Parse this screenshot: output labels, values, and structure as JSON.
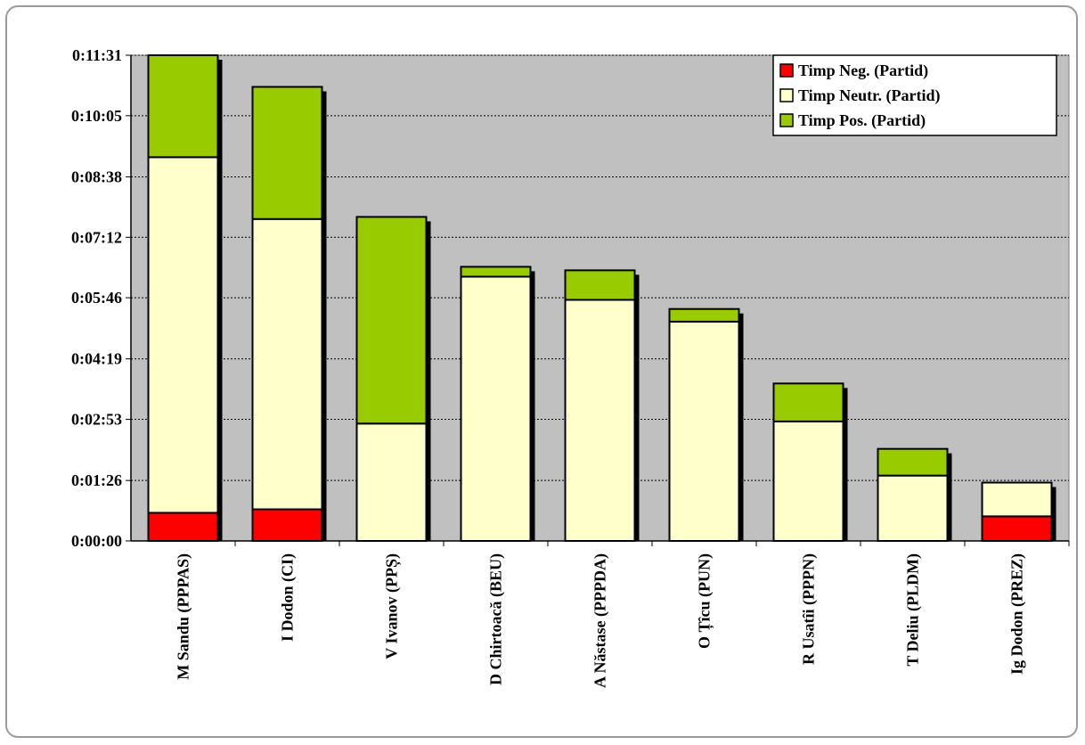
{
  "chart_data": {
    "type": "bar",
    "stacked": true,
    "title": "",
    "xlabel": "",
    "ylabel": "",
    "ylim_seconds": [
      0,
      691
    ],
    "y_ticks": [
      "0:00:00",
      "0:01:26",
      "0:02:53",
      "0:04:19",
      "0:05:46",
      "0:07:12",
      "0:08:38",
      "0:10:05",
      "0:11:31"
    ],
    "y_tick_seconds": [
      0,
      86,
      173,
      259,
      346,
      432,
      518,
      605,
      691
    ],
    "categories": [
      "M Sandu (PPPAS)",
      "I Dodon (CI)",
      "V Ivanov (PPȘ)",
      "D Chirtoacă (BEU)",
      "A Năstase (PPPDA)",
      "O Țîcu (PUN)",
      "R Usatîi (PPPN)",
      "T Deliu (PLDM)",
      "Ig Dodon (PREZ)"
    ],
    "series": [
      {
        "name": "Timp Neg. (Partid)",
        "color": "#ff0000",
        "values": [
          40,
          45,
          0,
          0,
          0,
          0,
          0,
          0,
          35
        ]
      },
      {
        "name": "Timp Neutr. (Partid)",
        "color": "#ffffcc",
        "values": [
          506,
          413,
          167,
          376,
          343,
          312,
          170,
          93,
          48
        ]
      },
      {
        "name": "Timp Pos. (Partid)",
        "color": "#99cc00",
        "values": [
          145,
          188,
          294,
          14,
          42,
          18,
          54,
          38,
          0
        ]
      }
    ],
    "grid": true,
    "legend_position": "top-right",
    "plot_background": "#c0c0c0"
  }
}
